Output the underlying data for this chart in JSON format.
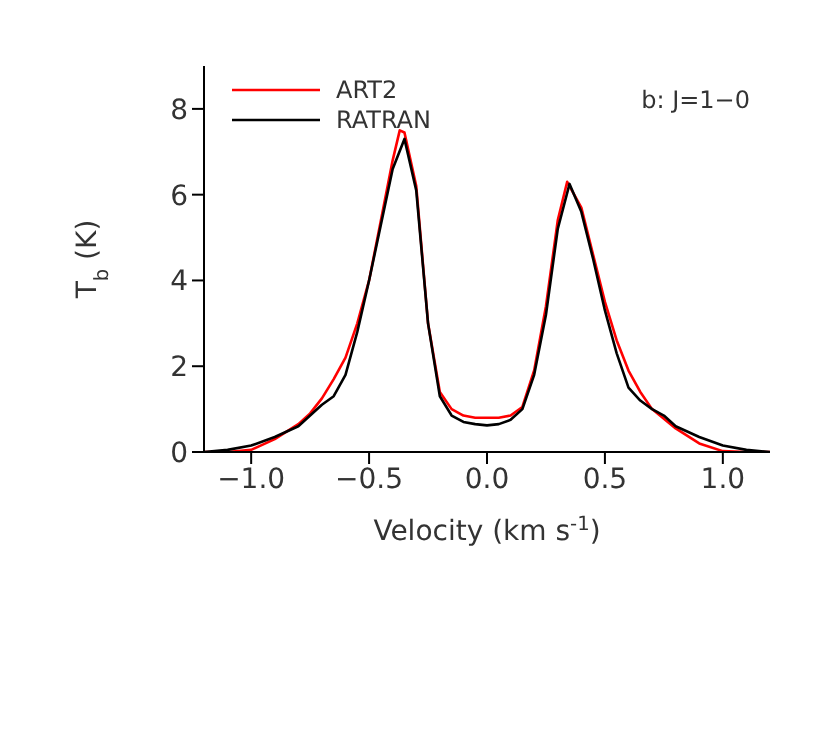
{
  "chart_data": {
    "type": "line",
    "xlabel": "Velocity (km s$^{-1}$)",
    "ylabel": "T$_{b}$ (K)",
    "annotations": [
      "b: J=1−0"
    ],
    "legend": "top left",
    "grid": false,
    "marker": "none",
    "line_style": "solid",
    "xlim": [
      -1.2,
      1.2
    ],
    "xticks": [
      {
        "value": -1,
        "label": "−1.0"
      },
      {
        "value": -0.5,
        "label": "−0.5"
      },
      {
        "value": 0,
        "label": "0.0"
      },
      {
        "value": 0.5,
        "label": "0.5"
      },
      {
        "value": 1,
        "label": "1.0"
      }
    ],
    "ylim": [
      0,
      9
    ],
    "yticks": [
      0,
      2,
      4,
      6,
      8
    ],
    "series": [
      {
        "name": "ART2",
        "color": "#ff0000",
        "x": [
          -1.2,
          -1.1,
          -1.0,
          -0.9,
          -0.8,
          -0.75,
          -0.7,
          -0.65,
          -0.6,
          -0.55,
          -0.5,
          -0.45,
          -0.4,
          -0.37,
          -0.35,
          -0.3,
          -0.25,
          -0.2,
          -0.15,
          -0.1,
          -0.05,
          0,
          0.05,
          0.1,
          0.15,
          0.2,
          0.25,
          0.3,
          0.34,
          0.4,
          0.45,
          0.5,
          0.55,
          0.6,
          0.65,
          0.7,
          0.8,
          0.9,
          1.0,
          1.1,
          1.2
        ],
        "values": [
          0,
          0,
          0.05,
          0.3,
          0.65,
          0.9,
          1.25,
          1.7,
          2.2,
          3.0,
          4.0,
          5.4,
          6.8,
          7.5,
          7.45,
          6.2,
          3.0,
          1.4,
          1.0,
          0.85,
          0.8,
          0.8,
          0.8,
          0.85,
          1.05,
          1.9,
          3.4,
          5.4,
          6.3,
          5.7,
          4.6,
          3.5,
          2.6,
          1.9,
          1.4,
          1.0,
          0.55,
          0.2,
          0.02,
          0,
          0
        ]
      },
      {
        "name": "RATRAN",
        "color": "#000000",
        "x": [
          -1.2,
          -1.1,
          -1.0,
          -0.9,
          -0.8,
          -0.75,
          -0.7,
          -0.65,
          -0.6,
          -0.55,
          -0.5,
          -0.45,
          -0.4,
          -0.35,
          -0.3,
          -0.25,
          -0.2,
          -0.15,
          -0.1,
          -0.05,
          0,
          0.05,
          0.1,
          0.15,
          0.2,
          0.25,
          0.3,
          0.35,
          0.4,
          0.45,
          0.5,
          0.55,
          0.6,
          0.65,
          0.7,
          0.75,
          0.8,
          0.9,
          1.0,
          1.1,
          1.2
        ],
        "values": [
          0,
          0.05,
          0.15,
          0.35,
          0.6,
          0.85,
          1.1,
          1.3,
          1.8,
          2.8,
          4.0,
          5.3,
          6.6,
          7.3,
          6.1,
          3.0,
          1.3,
          0.85,
          0.7,
          0.65,
          0.62,
          0.65,
          0.75,
          1.0,
          1.8,
          3.2,
          5.2,
          6.25,
          5.6,
          4.5,
          3.3,
          2.3,
          1.5,
          1.2,
          1.0,
          0.85,
          0.6,
          0.35,
          0.15,
          0.05,
          0
        ]
      }
    ]
  }
}
